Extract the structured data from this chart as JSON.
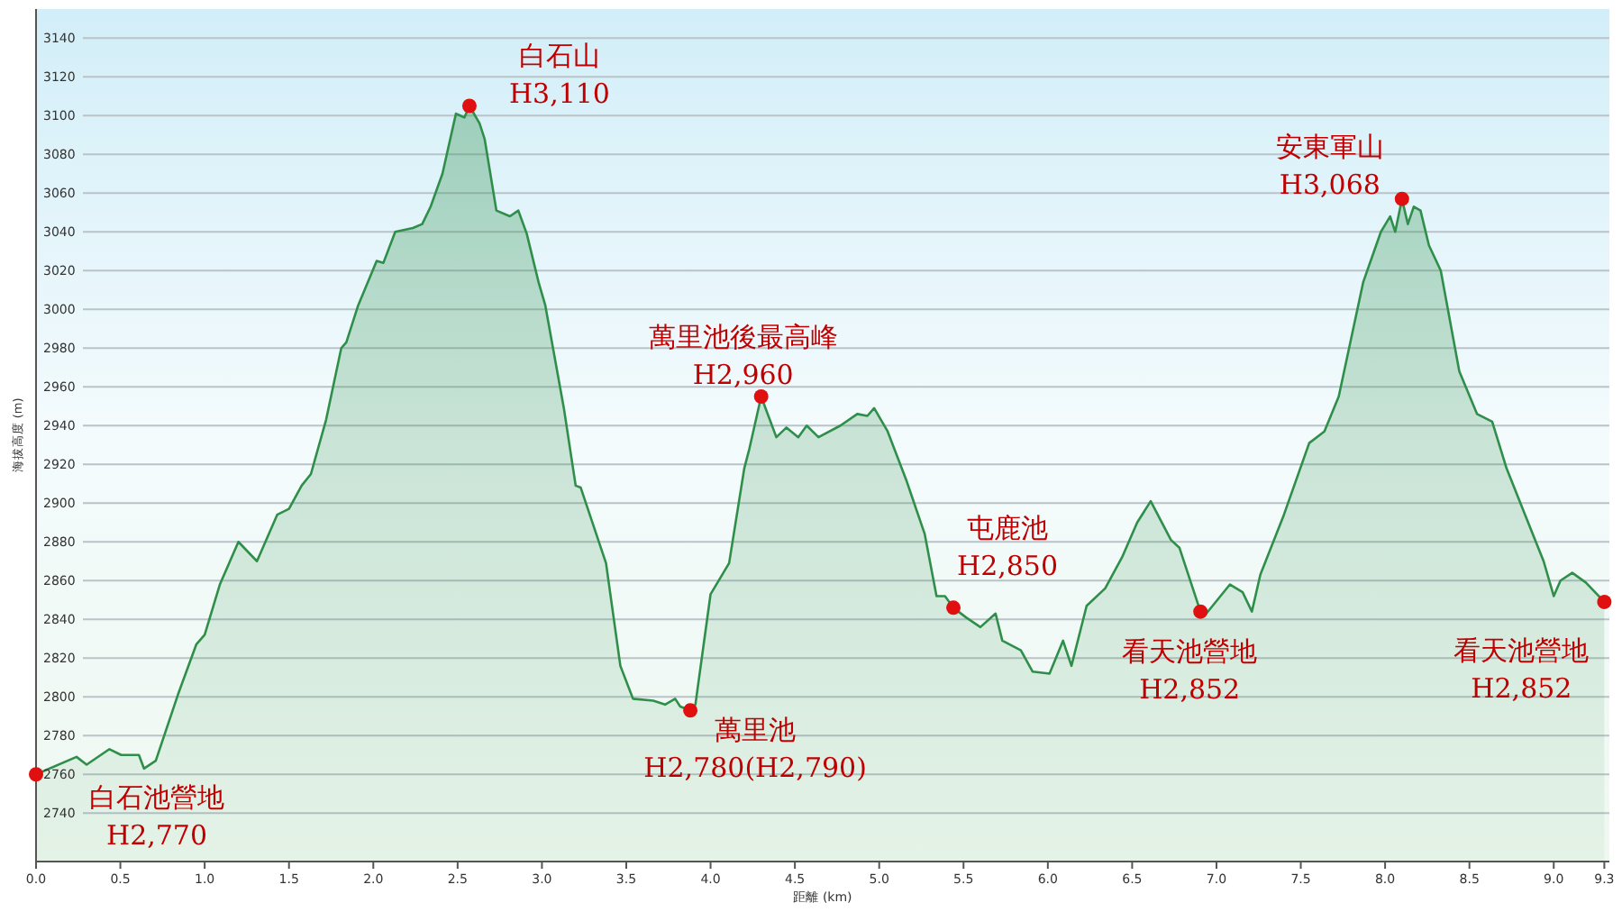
{
  "chart_data": {
    "type": "area",
    "xlabel": "距離 (km)",
    "ylabel": "海拔高度 (m)",
    "xlim": [
      0,
      9.33
    ],
    "ylim": [
      2715,
      3155
    ],
    "xticks": [
      {
        "value": 0,
        "label": "0.0"
      },
      {
        "value": 0.5,
        "label": "0.5"
      },
      {
        "value": 1,
        "label": "1.0"
      },
      {
        "value": 1.5,
        "label": "1.5"
      },
      {
        "value": 2,
        "label": "2.0"
      },
      {
        "value": 2.5,
        "label": "2.5"
      },
      {
        "value": 3,
        "label": "3.0"
      },
      {
        "value": 3.5,
        "label": "3.5"
      },
      {
        "value": 4,
        "label": "4.0"
      },
      {
        "value": 4.5,
        "label": "4.5"
      },
      {
        "value": 5,
        "label": "5.0"
      },
      {
        "value": 5.5,
        "label": "5.5"
      },
      {
        "value": 6,
        "label": "6.0"
      },
      {
        "value": 6.5,
        "label": "6.5"
      },
      {
        "value": 7,
        "label": "7.0"
      },
      {
        "value": 7.5,
        "label": "7.5"
      },
      {
        "value": 8,
        "label": "8.0"
      },
      {
        "value": 8.5,
        "label": "8.5"
      },
      {
        "value": 9,
        "label": "9.0"
      },
      {
        "value": 9.3,
        "label": "9.3"
      }
    ],
    "yticks": [
      2740,
      2760,
      2780,
      2800,
      2820,
      2840,
      2860,
      2880,
      2900,
      2920,
      2940,
      2960,
      2980,
      3000,
      3020,
      3040,
      3060,
      3080,
      3100,
      3120,
      3140
    ],
    "grid": "y",
    "series": [
      {
        "color": "#2f8f4a",
        "x": [
          0,
          0.24,
          0.3,
          0.435,
          0.505,
          0.61,
          0.64,
          0.71,
          0.845,
          0.95,
          1.0,
          1.09,
          1.2,
          1.31,
          1.43,
          1.5,
          1.575,
          1.63,
          1.72,
          1.81,
          1.84,
          1.91,
          2.02,
          2.06,
          2.13,
          2.235,
          2.29,
          2.34,
          2.41,
          2.49,
          2.54,
          2.57,
          2.63,
          2.66,
          2.73,
          2.81,
          2.86,
          2.91,
          2.98,
          3.02,
          3.13,
          3.2,
          3.23,
          3.38,
          3.465,
          3.54,
          3.66,
          3.73,
          3.79,
          3.82,
          3.88,
          3.91,
          4.0,
          4.11,
          4.2,
          4.23,
          4.3,
          4.39,
          4.45,
          4.52,
          4.57,
          4.64,
          4.77,
          4.87,
          4.93,
          4.97,
          5.05,
          5.16,
          5.27,
          5.34,
          5.39,
          5.44,
          5.515,
          5.6,
          5.69,
          5.73,
          5.84,
          5.91,
          6.01,
          6.09,
          6.14,
          6.23,
          6.34,
          6.44,
          6.53,
          6.61,
          6.73,
          6.78,
          6.905,
          6.94,
          7.08,
          7.155,
          7.21,
          7.26,
          7.4,
          7.55,
          7.64,
          7.725,
          7.87,
          7.975,
          8.03,
          8.06,
          8.1,
          8.135,
          8.17,
          8.21,
          8.26,
          8.33,
          8.44,
          8.545,
          8.635,
          8.72,
          8.83,
          8.94,
          9.0,
          9.04,
          9.11,
          9.19,
          9.3
        ],
        "values": [
          2760,
          2769,
          2765,
          2773,
          2770,
          2770,
          2763,
          2767,
          2802,
          2827,
          2832,
          2858,
          2880,
          2870,
          2894,
          2897,
          2909,
          2915,
          2943,
          2980,
          2983,
          3002,
          3025,
          3024,
          3040,
          3042,
          3044,
          3053,
          3070,
          3101,
          3099,
          3105,
          3096,
          3088,
          3051,
          3048,
          3051,
          3039,
          3014,
          3002,
          2949,
          2909,
          2908,
          2869,
          2816,
          2799,
          2798,
          2796,
          2799,
          2795,
          2793,
          2796,
          2853,
          2869,
          2918,
          2928,
          2955,
          2934,
          2939,
          2934,
          2940,
          2934,
          2940,
          2946,
          2945,
          2949,
          2937,
          2912,
          2884,
          2852,
          2852,
          2846,
          2841,
          2836,
          2843,
          2829,
          2824,
          2813,
          2812,
          2829,
          2816,
          2847,
          2856,
          2872,
          2890,
          2901,
          2881,
          2877,
          2844,
          2843,
          2858,
          2854,
          2844,
          2863,
          2894,
          2931,
          2937,
          2955,
          3014,
          3040,
          3048,
          3040,
          3057,
          3044,
          3053,
          3051,
          3033,
          3020,
          2968,
          2946,
          2942,
          2918,
          2894,
          2870,
          2852,
          2860,
          2864,
          2859,
          2849
        ]
      }
    ],
    "annotations": [
      {
        "text": "白石池營地\nH2,770",
        "x": 0,
        "y": 2760
      },
      {
        "text": "白石山\nH3,110",
        "x": 2.57,
        "y": 3105
      },
      {
        "text": "萬里池後最高峰\nH2,960",
        "x": 4.3,
        "y": 2955
      },
      {
        "text": "萬里池\nH2,780(H2,790)",
        "x": 3.88,
        "y": 2793
      },
      {
        "text": "屯鹿池\nH2,850",
        "x": 5.44,
        "y": 2846
      },
      {
        "text": "看天池營地\nH2,852",
        "x": 6.905,
        "y": 2844
      },
      {
        "text": "安東軍山\nH3,068",
        "x": 8.1,
        "y": 3057
      },
      {
        "text": "看天池營地\nH2,852",
        "x": 9.3,
        "y": 2849
      }
    ]
  }
}
